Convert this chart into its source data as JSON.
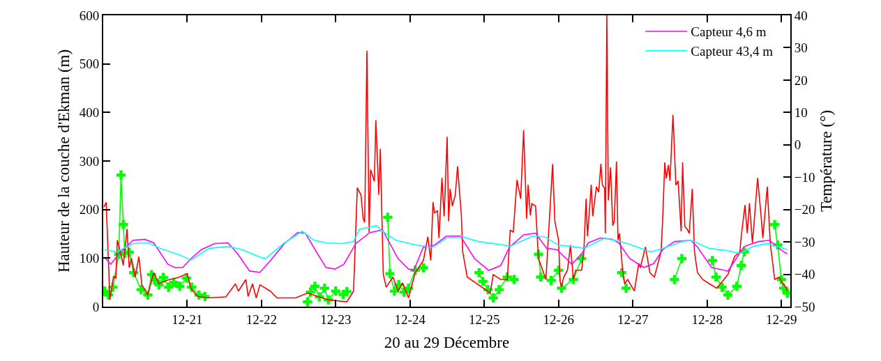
{
  "chart_data": {
    "type": "line",
    "xlabel": "20 au 29 Décembre",
    "ylabel": "Hauteur de la couche d'Ekman (m)",
    "y2label": "Température (°)",
    "xlim": [
      "--12-19T20:53",
      "--12-29T02:53"
    ],
    "xticks": [
      {
        "value": "--12-21",
        "label": "12-21"
      },
      {
        "value": "--12-22",
        "label": "12-22"
      },
      {
        "value": "--12-23",
        "label": "12-23"
      },
      {
        "value": "--12-24",
        "label": "12-24"
      },
      {
        "value": "--12-25",
        "label": "12-25"
      },
      {
        "value": "--12-26",
        "label": "12-26"
      },
      {
        "value": "--12-27",
        "label": "12-27"
      },
      {
        "value": "--12-28",
        "label": "12-28"
      },
      {
        "value": "--12-29",
        "label": "12-29"
      }
    ],
    "ylim": [
      0,
      600
    ],
    "yticks": [
      0,
      100,
      200,
      300,
      400,
      500,
      600
    ],
    "y2lim": [
      -50,
      40
    ],
    "y2ticks": [
      -50,
      -40,
      -30,
      -20,
      -10,
      0,
      10,
      20,
      30,
      40
    ],
    "legend": "top right",
    "series": [
      {
        "color": "#ff0000",
        "marker": "none",
        "x": [
          "--12-19T21:07",
          "--12-19T21:50",
          "--12-19T23:02",
          "--12-20T00:14",
          "--12-20T00:58",
          "--12-20T01:26",
          "--12-20T02:24",
          "--12-20T03:22",
          "--12-20T04:34",
          "--12-20T05:17",
          "--12-20T06:00",
          "--12-20T07:12",
          "--12-20T08:24",
          "--12-20T09:22",
          "--12-20T11:17",
          "--12-20T13:12",
          "--12-20T14:53",
          "--12-20T17:46",
          "--12-20T21:07",
          "--12-21T00:00",
          "--12-21T01:12",
          "--12-21T03:22",
          "--12-21T06:29",
          "--12-21T12:29",
          "--12-21T15:36",
          "--12-21T16:34",
          "--12-21T18:58",
          "--12-21T19:41",
          "--12-21T21:07",
          "--12-21T22:19",
          "--12-21T23:31",
          "--12-22T02:53",
          "--12-22T05:02",
          "--12-22T11:02",
          "--12-22T14:53",
          "--12-22T21:36",
          "--12-23T03:36",
          "--12-23T05:46",
          "--12-23T06:58",
          "--12-23T08:10",
          "--12-23T08:53",
          "--12-23T09:22",
          "--12-23T10:05",
          "--12-23T10:48",
          "--12-23T11:17",
          "--12-23T12:29",
          "--12-23T12:58",
          "--12-23T13:55",
          "--12-23T14:24",
          "--12-23T15:22",
          "--12-23T16:19",
          "--12-23T18:29",
          "--12-23T20:10",
          "--12-23T21:36",
          "--12-23T23:31",
          "--12-24T01:41",
          "--12-24T04:19",
          "--12-24T05:46",
          "--12-24T06:43",
          "--12-24T07:26",
          "--12-24T07:55",
          "--12-24T08:53",
          "--12-24T09:22",
          "--12-24T10:19",
          "--12-24T11:02",
          "--12-24T12:00",
          "--12-24T12:29",
          "--12-24T12:58",
          "--12-24T13:41",
          "--12-24T14:38",
          "--12-24T15:22",
          "--12-24T16:34",
          "--12-24T17:02",
          "--12-24T18:29",
          "--12-25T01:55",
          "--12-25T02:53",
          "--12-25T05:17",
          "--12-25T07:26",
          "--12-25T08:24",
          "--12-25T09:22",
          "--12-25T10:34",
          "--12-25T11:46",
          "--12-25T12:43",
          "--12-25T13:41",
          "--12-25T14:10",
          "--12-25T14:53",
          "--12-25T15:22",
          "--12-25T16:34",
          "--12-25T17:31",
          "--12-25T19:55",
          "--12-25T22:05",
          "--12-25T22:48",
          "--12-26T00:00",
          "--12-26T00:29",
          "--12-26T00:58",
          "--12-26T01:41",
          "--12-26T02:53",
          "--12-26T03:50",
          "--12-26T04:48",
          "--12-26T05:31",
          "--12-26T07:26",
          "--12-26T08:10",
          "--12-26T08:53",
          "--12-26T09:22",
          "--12-26T10:34",
          "--12-26T11:02",
          "--12-26T12:14",
          "--12-26T12:58",
          "--12-26T13:41",
          "--12-26T14:10",
          "--12-26T14:53",
          "--12-26T15:07",
          "--12-26T15:36",
          "--12-26T16:05",
          "--12-26T16:48",
          "--12-26T17:31",
          "--12-26T18:00",
          "--12-26T18:43",
          "--12-26T19:12",
          "--12-26T19:41",
          "--12-26T20:38",
          "--12-26T21:22",
          "--12-26T22:19",
          "--12-27T00:29",
          "--12-27T01:55",
          "--12-27T02:24",
          "--12-27T04:05",
          "--12-27T05:31",
          "--12-27T06:58",
          "--12-27T09:07",
          "--12-27T09:36",
          "--12-27T10:19",
          "--12-27T10:48",
          "--12-27T11:31",
          "--12-27T12:00",
          "--12-27T12:58",
          "--12-27T13:55",
          "--12-27T14:38",
          "--12-27T15:36",
          "--12-27T16:05",
          "--12-27T16:48",
          "--12-27T17:31",
          "--12-27T18:14",
          "--12-27T19:12",
          "--12-27T19:55",
          "--12-27T20:53",
          "--12-27T22:34",
          "--12-28T00:43",
          "--12-28T03:07",
          "--12-28T06:43",
          "--12-28T08:53",
          "--12-28T10:34",
          "--12-28T11:02",
          "--12-28T12:14",
          "--12-28T12:58",
          "--12-28T13:41",
          "--12-28T14:38",
          "--12-28T15:22",
          "--12-28T16:19",
          "--12-28T17:31",
          "--12-28T18:00",
          "--12-28T19:26",
          "--12-28T20:24",
          "--12-28T21:50",
          "--12-28T23:17",
          "--12-29T00:00",
          "--12-29T01:12",
          "--12-29T01:55"
        ],
        "values": [
          205,
          215,
          14,
          63,
          58,
          137,
          113,
          85,
          160,
          80,
          100,
          61,
          103,
          45,
          24,
          70,
          47,
          55,
          60,
          68,
          38,
          21,
          18,
          20,
          47,
          32,
          56,
          21,
          47,
          18,
          45,
          32,
          18,
          18,
          28,
          14,
          10,
          32,
          245,
          230,
          180,
          174,
          527,
          153,
          282,
          258,
          384,
          230,
          325,
          66,
          40,
          61,
          32,
          49,
          18,
          70,
          95,
          144,
          95,
          215,
          193,
          198,
          141,
          265,
          186,
          350,
          176,
          243,
          207,
          230,
          289,
          191,
          113,
          61,
          28,
          66,
          56,
          56,
          158,
          153,
          261,
          222,
          364,
          181,
          251,
          188,
          212,
          207,
          99,
          56,
          294,
          176,
          137,
          52,
          42,
          61,
          75,
          127,
          56,
          75,
          75,
          113,
          222,
          145,
          251,
          186,
          247,
          236,
          294,
          250,
          244,
          151,
          600,
          219,
          287,
          167,
          176,
          299,
          137,
          151,
          80,
          47,
          56,
          32,
          89,
          80,
          123,
          70,
          61,
          113,
          174,
          297,
          264,
          292,
          259,
          395,
          250,
          259,
          155,
          297,
          165,
          160,
          151,
          243,
          113,
          70,
          56,
          47,
          38,
          66,
          103,
          113,
          145,
          209,
          151,
          213,
          131,
          188,
          265,
          181,
          141,
          247,
          131,
          56,
          61,
          52,
          42,
          32
        ]
      },
      {
        "color": "#00ff00",
        "marker": "cross",
        "x": [
          "--12-19T21:22",
          "--12-19T22:34",
          "--12-20T00:00",
          "--12-20T01:55",
          "--12-20T02:38",
          "--12-20T03:22",
          "--12-20T03:50",
          "--12-20T05:17",
          "--12-20T06:43",
          "--12-20T09:07",
          "--12-20T11:17",
          "--12-20T12:29",
          "--12-20T13:26",
          "--12-20T14:53",
          "--12-20T16:19",
          "--12-20T18:00",
          "--12-20T19:41",
          "--12-20T21:36",
          "--12-20T23:46",
          "--12-21T01:26",
          "--12-21T03:50",
          "--12-21T05:46",
          "--12-21T12:00",
          "--12-22T14:53",
          "--12-22T15:50",
          "--12-22T17:17",
          "--12-22T18:43",
          "--12-22T20:24",
          "--12-22T21:36",
          "--12-23T00:00",
          "--12-23T02:24",
          "--12-23T03:36",
          "--12-23T09:36",
          "--12-23T16:48",
          "--12-23T17:31",
          "--12-23T18:58",
          "--12-23T20:24",
          "--12-23T22:05",
          "--12-23T23:31",
          "--12-24T01:41",
          "--12-24T04:19",
          "--12-24T12:00",
          "--12-24T22:19",
          "--12-24T23:31",
          "--12-25T01:12",
          "--12-25T02:53",
          "--12-25T04:48",
          "--12-25T07:26",
          "--12-25T09:36",
          "--12-25T14:24",
          "--12-25T17:31",
          "--12-25T18:14",
          "--12-25T21:36",
          "--12-26T00:00",
          "--12-26T00:58",
          "--12-26T04:48",
          "--12-26T07:26",
          "--12-26T14:24",
          "--12-26T20:24",
          "--12-26T21:50",
          "--12-27T04:48",
          "--12-27T13:26",
          "--12-27T15:50",
          "--12-27T21:36",
          "--12-28T01:41",
          "--12-28T02:53",
          "--12-28T04:48",
          "--12-28T06:43",
          "--12-28T09:36",
          "--12-28T11:02",
          "--12-28T12:00",
          "--12-28T16:48",
          "--12-28T21:50",
          "--12-28T22:48",
          "--12-29T00:00",
          "--12-29T00:43",
          "--12-29T01:55"
        ],
        "values": [
          32,
          24,
          40,
          108,
          271,
          169,
          110,
          112,
          70,
          35,
          24,
          66,
          55,
          45,
          60,
          40,
          50,
          42,
          59,
          40,
          24,
          21,
          null,
          10,
          30,
          42,
          20,
          38,
          14,
          32,
          25,
          31,
          null,
          184,
          68,
          32,
          45,
          30,
          38,
          75,
          80,
          null,
          70,
          52,
          35,
          18,
          35,
          61,
          56,
          null,
          108,
          61,
          54,
          75,
          38,
          56,
          99,
          null,
          70,
          38,
          null,
          56,
          99,
          null,
          95,
          61,
          40,
          24,
          42,
          85,
          113,
          null,
          169,
          127,
          56,
          38,
          28
        ]
      },
      {
        "name": "Capteur 4,6 m",
        "color": "#ff00ff",
        "axis": "y2",
        "marker": "none",
        "x": [
          "--12-19T21:22",
          "--12-19T23:17",
          "--12-20T01:55",
          "--12-20T06:29",
          "--12-20T10:19",
          "--12-20T13:12",
          "--12-20T17:46",
          "--12-20T19:55",
          "--12-20T22:34",
          "--12-21T01:12",
          "--12-21T04:34",
          "--12-21T08:53",
          "--12-21T13:12",
          "--12-21T16:19",
          "--12-21T20:10",
          "--12-21T23:31",
          "--12-22T02:53",
          "--12-22T07:26",
          "--12-22T11:46",
          "--12-22T14:10",
          "--12-22T17:46",
          "--12-22T20:53",
          "--12-22T23:46",
          "--12-23T02:38",
          "--12-23T06:29",
          "--12-23T11:02",
          "--12-23T15:07",
          "--12-23T20:10",
          "--12-23T23:31",
          "--12-24T01:12",
          "--12-24T04:19",
          "--12-24T07:55",
          "--12-24T11:46",
          "--12-24T16:19",
          "--12-24T20:53",
          "--12-25T01:26",
          "--12-25T05:17",
          "--12-25T08:10",
          "--12-25T12:43",
          "--12-25T16:34",
          "--12-25T20:10",
          "--12-25T23:31",
          "--12-26T04:19",
          "--12-26T07:26",
          "--12-26T09:36",
          "--12-26T13:26",
          "--12-26T17:17",
          "--12-26T19:26",
          "--12-26T23:02",
          "--12-27T03:36",
          "--12-27T06:43",
          "--12-27T09:36",
          "--12-27T13:26",
          "--12-27T18:43",
          "--12-27T20:53",
          "--12-28T01:26",
          "--12-28T06:43",
          "--12-28T09:50",
          "--12-28T12:00",
          "--12-28T16:34",
          "--12-28T20:10",
          "--12-29T00:00",
          "--12-29T01:55"
        ],
        "values": [
          -34.8,
          -36.9,
          -33.7,
          -29.5,
          -29.2,
          -30.3,
          -36.9,
          -37.9,
          -37.9,
          -35.2,
          -32.4,
          -30.5,
          -30.3,
          -33.7,
          -39.0,
          -39.4,
          -35.8,
          -30.5,
          -27.1,
          -27.3,
          -33.1,
          -37.9,
          -38.4,
          -36.9,
          -30.5,
          -27.1,
          -26.3,
          -35.2,
          -38.4,
          -38.8,
          -31.6,
          -31.0,
          -28.2,
          -28.2,
          -35.2,
          -38.8,
          -37.3,
          -31.6,
          -27.8,
          -27.3,
          -32.0,
          -32.4,
          -36.9,
          -33.7,
          -30.3,
          -28.8,
          -29.2,
          -30.3,
          -35.2,
          -37.9,
          -36.7,
          -32.4,
          -29.9,
          -29.5,
          -31.6,
          -37.9,
          -39.0,
          -34.5,
          -31.4,
          -29.9,
          -29.5,
          -32.6,
          -33.7
        ]
      },
      {
        "name": "Capteur 43,4 m",
        "color": "#00ffff",
        "axis": "y2",
        "marker": "none",
        "x": [
          "--12-19T21:22",
          "--12-20T01:12",
          "--12-20T06:29",
          "--12-20T11:31",
          "--12-20T15:22",
          "--12-20T21:50",
          "--12-21T01:12",
          "--12-21T07:12",
          "--12-21T13:12",
          "--12-21T17:46",
          "--12-21T23:02",
          "--12-22T01:12",
          "--12-22T07:26",
          "--12-22T13:12",
          "--12-22T17:02",
          "--12-22T21:07",
          "--12-23T01:55",
          "--12-23T05:46",
          "--12-23T07:41",
          "--12-23T13:12",
          "--12-23T15:07",
          "--12-23T19:26",
          "--12-24T02:10",
          "--12-24T07:26",
          "--12-24T11:46",
          "--12-24T16:48",
          "--12-24T22:19",
          "--12-25T06:29",
          "--12-25T08:10",
          "--12-25T15:36",
          "--12-25T19:26",
          "--12-26T00:00",
          "--12-26T04:19",
          "--12-26T08:10",
          "--12-26T14:53",
          "--12-26T22:19",
          "--12-27T05:46",
          "--12-27T09:36",
          "--12-27T15:50",
          "--12-27T18:43",
          "--12-28T00:43",
          "--12-28T06:00",
          "--12-28T10:34",
          "--12-28T14:53",
          "--12-28T19:26",
          "--12-29T01:55"
        ],
        "values": [
          -32.4,
          -33.1,
          -30.5,
          -30.3,
          -32.0,
          -34.1,
          -35.6,
          -32.0,
          -31.4,
          -32.4,
          -34.5,
          -35.2,
          -30.3,
          -26.7,
          -29.5,
          -30.3,
          -30.5,
          -29.9,
          -26.1,
          -25.0,
          -26.7,
          -29.5,
          -31.0,
          -31.6,
          -28.8,
          -28.4,
          -29.9,
          -31.0,
          -31.4,
          -28.2,
          -28.4,
          -31.0,
          -31.4,
          -32.0,
          -28.8,
          -30.5,
          -33.1,
          -32.0,
          -29.9,
          -29.5,
          -32.0,
          -32.6,
          -33.5,
          -31.4,
          -30.5,
          -32.4
        ]
      }
    ]
  }
}
